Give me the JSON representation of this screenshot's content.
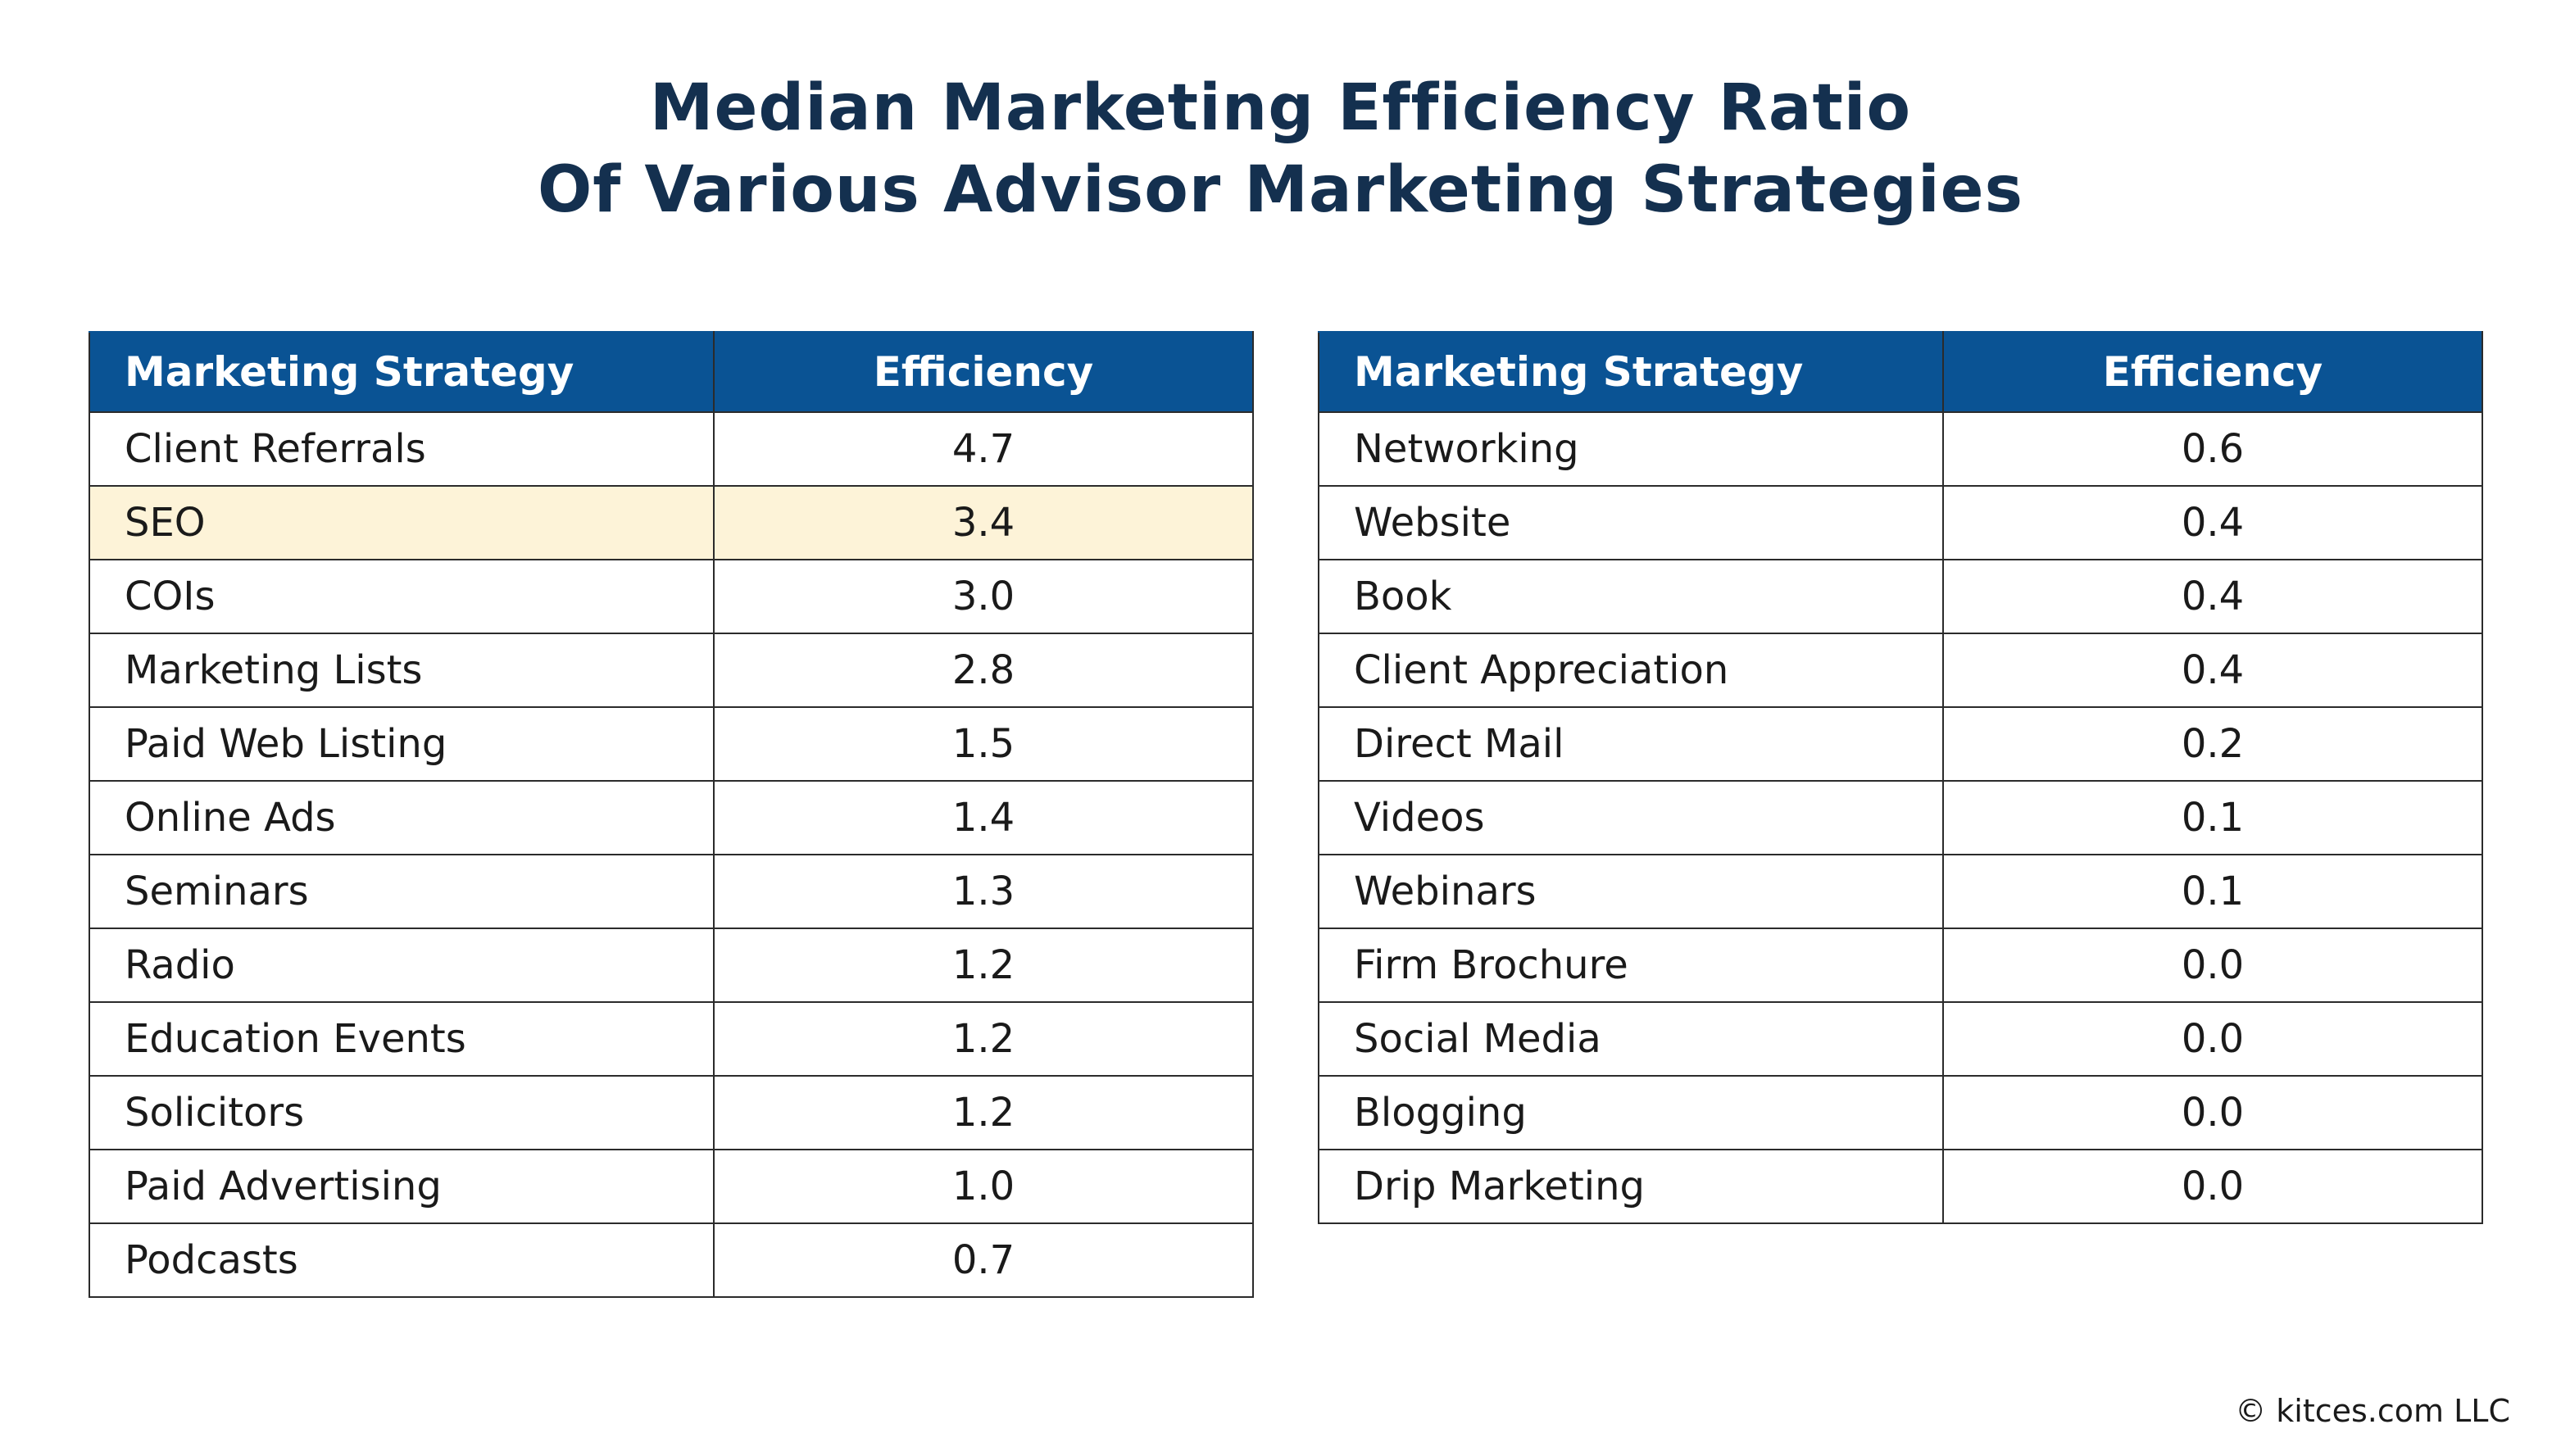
{
  "title": {
    "line1": "Median Marketing Efficiency Ratio",
    "line2": "Of Various Advisor Marketing Strategies"
  },
  "chart_data": {
    "type": "table",
    "title": "Median Marketing Efficiency Ratio Of Various Advisor Marketing Strategies",
    "columns": [
      "Marketing Strategy",
      "Efficiency"
    ],
    "highlight_color": "#fdf3d8",
    "header_color": "#0a5394",
    "tables": [
      {
        "columns": [
          "Marketing Strategy",
          "Efficiency"
        ],
        "rows": [
          {
            "strategy": "Client Referrals",
            "efficiency": "4.7"
          },
          {
            "strategy": "SEO",
            "efficiency": "3.4",
            "highlighted": true
          },
          {
            "strategy": "COIs",
            "efficiency": "3.0"
          },
          {
            "strategy": "Marketing Lists",
            "efficiency": "2.8"
          },
          {
            "strategy": "Paid Web Listing",
            "efficiency": "1.5"
          },
          {
            "strategy": "Online Ads",
            "efficiency": "1.4"
          },
          {
            "strategy": "Seminars",
            "efficiency": "1.3"
          },
          {
            "strategy": "Radio",
            "efficiency": "1.2"
          },
          {
            "strategy": "Education Events",
            "efficiency": "1.2"
          },
          {
            "strategy": "Solicitors",
            "efficiency": "1.2"
          },
          {
            "strategy": "Paid Advertising",
            "efficiency": "1.0"
          },
          {
            "strategy": "Podcasts",
            "efficiency": "0.7"
          }
        ]
      },
      {
        "columns": [
          "Marketing Strategy",
          "Efficiency"
        ],
        "rows": [
          {
            "strategy": "Networking",
            "efficiency": "0.6"
          },
          {
            "strategy": "Website",
            "efficiency": "0.4"
          },
          {
            "strategy": "Book",
            "efficiency": "0.4"
          },
          {
            "strategy": "Client Appreciation",
            "efficiency": "0.4"
          },
          {
            "strategy": "Direct Mail",
            "efficiency": "0.2"
          },
          {
            "strategy": "Videos",
            "efficiency": "0.1"
          },
          {
            "strategy": "Webinars",
            "efficiency": "0.1"
          },
          {
            "strategy": "Firm Brochure",
            "efficiency": "0.0"
          },
          {
            "strategy": "Social Media",
            "efficiency": "0.0"
          },
          {
            "strategy": "Blogging",
            "efficiency": "0.0"
          },
          {
            "strategy": "Drip Marketing",
            "efficiency": "0.0"
          }
        ]
      }
    ]
  },
  "copyright": "© kitces.com LLC"
}
